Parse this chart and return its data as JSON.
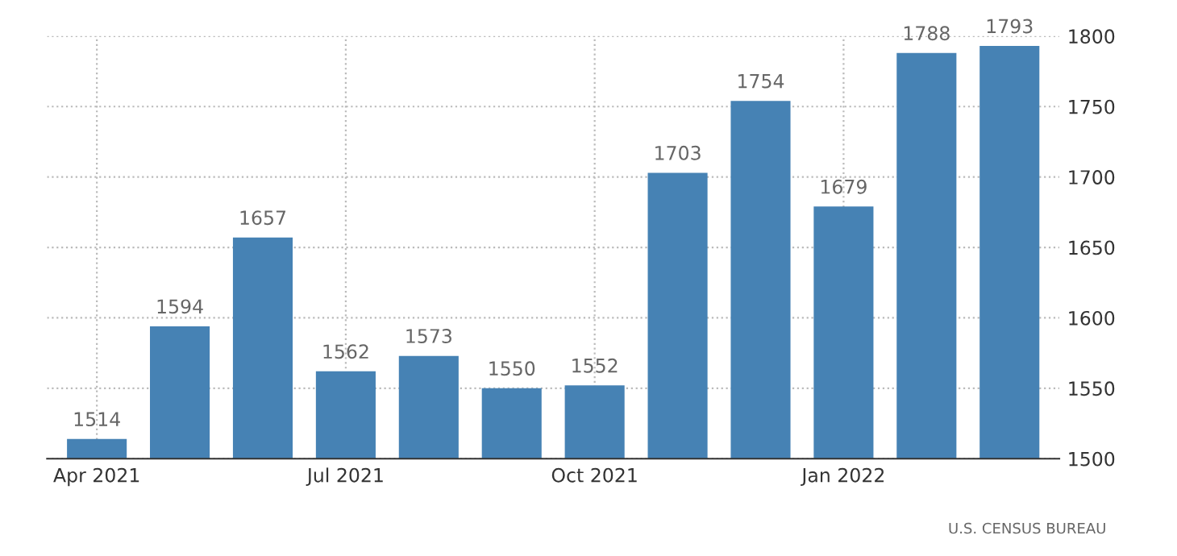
{
  "chart_data": {
    "type": "bar",
    "categories": [
      "Apr 2021",
      null,
      null,
      "Jul 2021",
      null,
      null,
      "Oct 2021",
      null,
      null,
      "Jan 2022",
      null,
      null
    ],
    "values": [
      1514,
      1594,
      1657,
      1562,
      1573,
      1550,
      1552,
      1703,
      1754,
      1679,
      1788,
      1793
    ],
    "color": "#4682b4",
    "ylim": [
      1500,
      1800
    ],
    "yticks": [
      1500,
      1550,
      1600,
      1650,
      1700,
      1750,
      1800
    ],
    "grid": true,
    "data_labels": true,
    "annotations": [
      "U.S. CENSUS BUREAU"
    ]
  }
}
